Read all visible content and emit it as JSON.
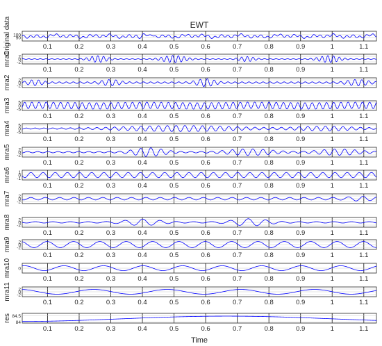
{
  "chart_data": {
    "type": "line",
    "title": "EWT",
    "xlabel": "Time",
    "xlim": [
      0.02,
      1.14
    ],
    "x_ticks": [
      "0.1",
      "0.2",
      "0.3",
      "0.4",
      "0.5",
      "0.6",
      "0.7",
      "0.8",
      "0.9",
      "1",
      "1.1"
    ],
    "line_color": "#0000ff",
    "grid": true,
    "panels": [
      {
        "ylabel": "Original data",
        "ylim": [
          78,
          112
        ],
        "yticks": [
          "100",
          "90"
        ],
        "shows_x_ticks": true,
        "signal": {
          "base": 95,
          "comps": [
            [
              4,
              48,
              0.3
            ],
            [
              3,
              17,
              1.1
            ],
            [
              2,
              7,
              2.0
            ]
          ],
          "bursts": [
            {
              "center": 0.41,
              "width": 0.03,
              "amp": 6,
              "freq": 40
            }
          ]
        }
      },
      {
        "ylabel": "mra1",
        "ylim": [
          -3.5,
          3.5
        ],
        "yticks": [
          "2",
          "0",
          "-2"
        ],
        "shows_x_ticks": true,
        "signal": {
          "base": 0,
          "comps": [
            [
              0.25,
              55,
              0
            ]
          ],
          "bursts": [
            {
              "center": 0.26,
              "width": 0.035,
              "amp": 2.2,
              "freq": 55
            },
            {
              "center": 0.5,
              "width": 0.045,
              "amp": 2.4,
              "freq": 55
            },
            {
              "center": 0.73,
              "width": 0.03,
              "amp": 1.6,
              "freq": 55
            },
            {
              "center": 0.99,
              "width": 0.04,
              "amp": 2.3,
              "freq": 55
            }
          ]
        }
      },
      {
        "ylabel": "mra2",
        "ylim": [
          -3.5,
          3.5
        ],
        "yticks": [
          "2",
          "0",
          "-2"
        ],
        "shows_x_ticks": false,
        "signal": {
          "base": 0,
          "comps": [
            [
              0.6,
              45,
              0.5
            ]
          ],
          "bursts": [
            {
              "center": 0.06,
              "width": 0.03,
              "amp": 1.6,
              "freq": 45
            },
            {
              "center": 0.3,
              "width": 0.035,
              "amp": 1.8,
              "freq": 45
            },
            {
              "center": 0.6,
              "width": 0.035,
              "amp": 2.4,
              "freq": 45
            },
            {
              "center": 1.08,
              "width": 0.04,
              "amp": 1.8,
              "freq": 45
            }
          ]
        }
      },
      {
        "ylabel": "mra3",
        "ylim": [
          -7,
          7
        ],
        "yticks": [
          "5",
          "0",
          "-5"
        ],
        "shows_x_ticks": true,
        "signal": {
          "base": 0,
          "comps": [
            [
              4.6,
              44,
              0.2
            ],
            [
              0.5,
              3,
              0.0
            ]
          ],
          "bursts": []
        }
      },
      {
        "ylabel": "mra4",
        "ylim": [
          -7,
          7
        ],
        "yticks": [
          "5",
          "0",
          "-5"
        ],
        "shows_x_ticks": true,
        "signal": {
          "base": 0,
          "comps": [
            [
              0.8,
              36,
              0.4
            ]
          ],
          "bursts": [
            {
              "center": 0.52,
              "width": 0.22,
              "amp": 3.6,
              "freq": 36
            },
            {
              "center": 0.98,
              "width": 0.12,
              "amp": 2.5,
              "freq": 36
            }
          ]
        }
      },
      {
        "ylabel": "mra5",
        "ylim": [
          -3.5,
          3.5
        ],
        "yticks": [
          "2",
          "0",
          "-2"
        ],
        "shows_x_ticks": true,
        "signal": {
          "base": 0,
          "comps": [
            [
              0.5,
              31,
              0.7
            ]
          ],
          "bursts": [
            {
              "center": 0.42,
              "width": 0.06,
              "amp": 2.8,
              "freq": 31
            },
            {
              "center": 0.74,
              "width": 0.09,
              "amp": 2.0,
              "freq": 31
            },
            {
              "center": 1.02,
              "width": 0.08,
              "amp": 1.9,
              "freq": 31
            }
          ]
        }
      },
      {
        "ylabel": "mra6",
        "ylim": [
          -1.6,
          1.6
        ],
        "yticks": [
          "1",
          "0",
          "-1"
        ],
        "shows_x_ticks": true,
        "signal": {
          "base": 0,
          "comps": [
            [
              0.85,
              26,
              0.1
            ]
          ],
          "bursts": []
        }
      },
      {
        "ylabel": "mra7",
        "ylim": [
          -3.5,
          3.5
        ],
        "yticks": [
          "2",
          "0",
          "-2"
        ],
        "shows_x_ticks": false,
        "signal": {
          "base": 0,
          "comps": [
            [
              0.9,
              22,
              1.3
            ]
          ],
          "bursts": [
            {
              "center": 1.09,
              "width": 0.05,
              "amp": 1.2,
              "freq": 22
            }
          ]
        }
      },
      {
        "ylabel": "mra8",
        "ylim": [
          -3.5,
          3.5
        ],
        "yticks": [
          "2",
          "0",
          "-2"
        ],
        "shows_x_ticks": true,
        "signal": {
          "base": 0,
          "comps": [
            [
              0.5,
              18,
              0.9
            ]
          ],
          "bursts": [
            {
              "center": 0.4,
              "width": 0.07,
              "amp": 2.0,
              "freq": 18
            },
            {
              "center": 0.74,
              "width": 0.07,
              "amp": 2.3,
              "freq": 18
            }
          ]
        }
      },
      {
        "ylabel": "mra9",
        "ylim": [
          -3.5,
          3.5
        ],
        "yticks": [
          "2",
          "0",
          "-2"
        ],
        "shows_x_ticks": true,
        "signal": {
          "base": 0,
          "comps": [
            [
              2.2,
              12,
              0.4
            ]
          ],
          "bursts": []
        }
      },
      {
        "ylabel": "mra10",
        "ylim": [
          -1.6,
          1.6
        ],
        "yticks": [
          "0"
        ],
        "shows_x_ticks": true,
        "signal": {
          "base": 0,
          "comps": [
            [
              0.8,
              8,
              0.2
            ]
          ],
          "bursts": []
        }
      },
      {
        "ylabel": "mra11",
        "ylim": [
          -3.5,
          3.5
        ],
        "yticks": [
          "2",
          "0",
          "-2"
        ],
        "shows_x_ticks": true,
        "signal": {
          "base": 0,
          "comps": [
            [
              1.7,
              4.3,
              1.2
            ]
          ],
          "bursts": []
        }
      },
      {
        "ylabel": "res",
        "ylim": [
          83.9,
          84.7
        ],
        "yticks": [
          "84.5",
          "84"
        ],
        "shows_x_ticks": true,
        "signal": {
          "base": 84.25,
          "comps": [
            [
              0.22,
              0.75,
              4.71
            ]
          ],
          "bursts": []
        }
      }
    ]
  }
}
